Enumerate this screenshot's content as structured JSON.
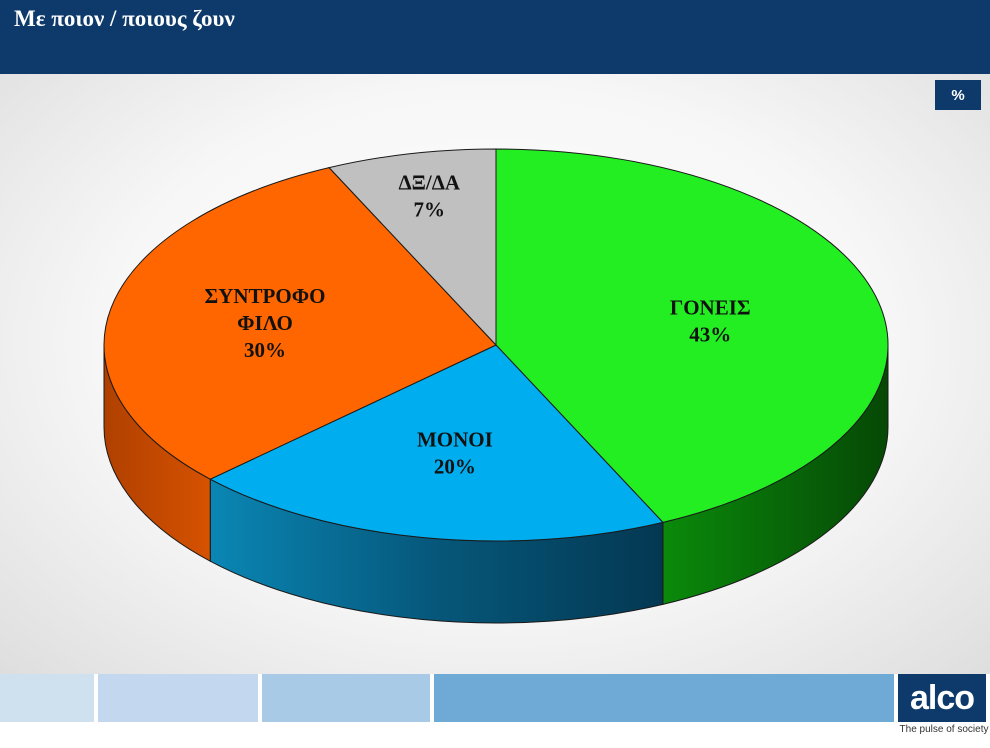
{
  "header": {
    "title": "Με ποιον / ποιους ζουν"
  },
  "unit_badge": "%",
  "colors": {
    "header_bg": "#0d3a6b",
    "goneis": "#22ee22",
    "monoi": "#00aeef",
    "syntrofo": "#ff6600",
    "dxda": "#c0c0c0"
  },
  "chart_data": {
    "type": "pie",
    "style": "3d",
    "unit": "%",
    "slices": [
      {
        "label_lines": [
          "ΓΟΝΕΙΣ"
        ],
        "value": 43,
        "value_label": "43%",
        "color": "#22ee22"
      },
      {
        "label_lines": [
          "ΜΟΝΟΙ"
        ],
        "value": 20,
        "value_label": "20%",
        "color": "#00aeef"
      },
      {
        "label_lines": [
          "ΣΥΝΤΡΟΦΟ",
          "ΦΙΛΟ"
        ],
        "value": 30,
        "value_label": "30%",
        "color": "#ff6600"
      },
      {
        "label_lines": [
          "ΔΞ/ΔΑ"
        ],
        "value": 7,
        "value_label": "7%",
        "color": "#c0c0c0"
      }
    ]
  },
  "footer": {
    "logo_text": "alco",
    "tagline": "The pulse of society"
  }
}
